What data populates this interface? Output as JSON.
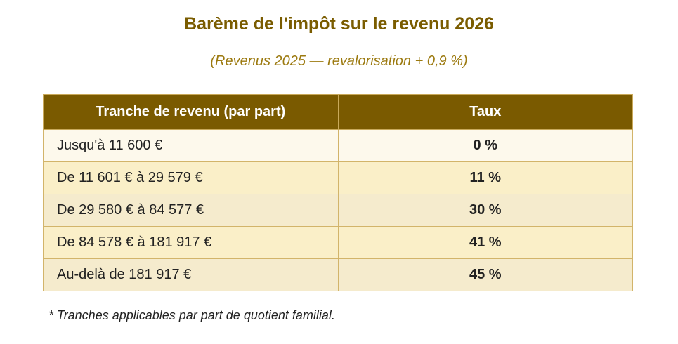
{
  "document": {
    "title": "Barème de l'impôt sur le revenu 2026",
    "subtitle": "(Revenus 2025 — revalorisation + 0,9 %)"
  },
  "table": {
    "headers": [
      "Tranche de revenu (par part)",
      "Taux"
    ],
    "rows": [
      {
        "range": "Jusqu'à 11 600 €",
        "rate": "0 %"
      },
      {
        "range": "De 11 601 € à 29 579 €",
        "rate": "11 %"
      },
      {
        "range": "De 29 580 € à 84 577 €",
        "rate": "30 %"
      },
      {
        "range": "De 84 578 € à 181 917 €",
        "rate": "41 %"
      },
      {
        "range": "Au-delà de 181 917 €",
        "rate": "45 %"
      }
    ]
  },
  "footnote": "* Tranches applicables par part de quotient familial.",
  "colors": {
    "accent": "#7a5a00",
    "title": "#7a5c00",
    "subtitle": "#9c7a10",
    "row_light": "#fdf9ec",
    "row_alt": "#faefc8",
    "border": "#d2b46a"
  }
}
